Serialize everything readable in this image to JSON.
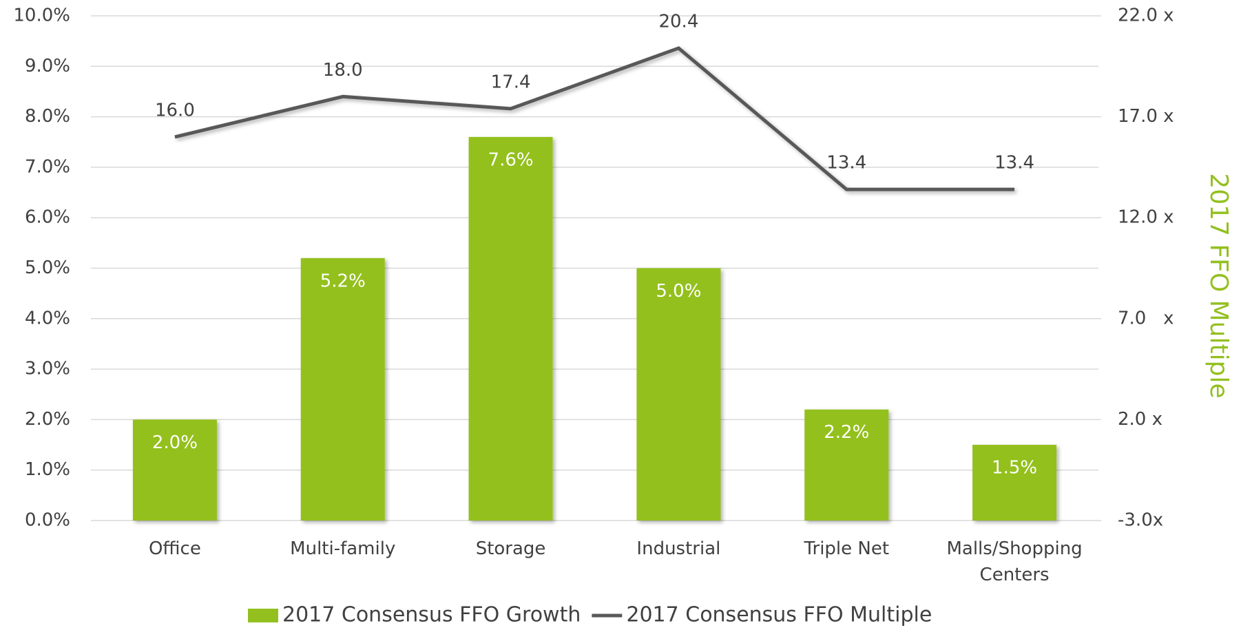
{
  "chart_data": {
    "type": "bar",
    "categories": [
      "Office",
      "Multi-family",
      "Storage",
      "Industrial",
      "Triple Net",
      "Malls/Shopping Centers"
    ],
    "series": [
      {
        "name": "2017 Consensus FFO Growth",
        "type": "bar",
        "color": "#93c01f",
        "values": [
          2.0,
          5.2,
          7.6,
          5.0,
          2.2,
          1.5
        ],
        "value_labels": [
          "2.0%",
          "5.2%",
          "7.6%",
          "5.0%",
          "2.2%",
          "1.5%"
        ]
      },
      {
        "name": "2017 Consensus FFO Multiple",
        "type": "line",
        "axis": "y2",
        "color": "#595959",
        "values": [
          16.0,
          18.0,
          17.4,
          20.4,
          13.4,
          13.4
        ],
        "value_labels": [
          "16.0",
          "18.0",
          "17.4",
          "20.4",
          "13.4",
          "13.4"
        ]
      }
    ],
    "ylim": [
      0,
      10
    ],
    "yticks": [
      {
        "value": 0,
        "label": "0.0%"
      },
      {
        "value": 1,
        "label": "1.0%"
      },
      {
        "value": 2,
        "label": "2.0%"
      },
      {
        "value": 3,
        "label": "3.0%"
      },
      {
        "value": 4,
        "label": "4.0%"
      },
      {
        "value": 5,
        "label": "5.0%"
      },
      {
        "value": 6,
        "label": "6.0%"
      },
      {
        "value": 7,
        "label": "7.0%"
      },
      {
        "value": 8,
        "label": "8.0%"
      },
      {
        "value": 9,
        "label": "9.0%"
      },
      {
        "value": 10,
        "label": "10.0%"
      }
    ],
    "y2lim": [
      -3,
      22
    ],
    "y2ticks": [
      {
        "value": -3,
        "label": "-3.0x"
      },
      {
        "value": 2,
        "label": "2.0 x"
      },
      {
        "value": 7,
        "label": "7.0   x"
      },
      {
        "value": 12,
        "label": "12.0 x"
      },
      {
        "value": 17,
        "label": "17.0 x"
      },
      {
        "value": 22,
        "label": "22.0 x"
      }
    ],
    "y2label": "2017 FFO Multiple",
    "y2label_color": "#93c01f",
    "grid": true,
    "legend": "bottom"
  }
}
